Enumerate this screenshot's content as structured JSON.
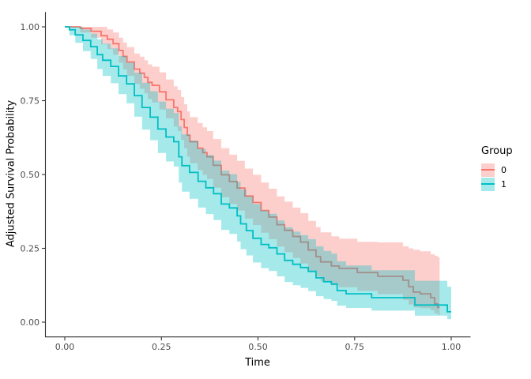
{
  "figure": {
    "background": "#ffffff",
    "axis_color": "#333333",
    "tick_label_color": "#4d4d4d",
    "axis_title_color": "#000000",
    "band_opacity": 0.35,
    "line_width": 1.8
  },
  "chart_data": {
    "type": "line",
    "subtype": "step-survival-curves-with-confidence-bands",
    "title": "",
    "xlabel": "Time",
    "ylabel": "Adjusted Survival Probability",
    "xlim": [
      0,
      1
    ],
    "ylim": [
      0,
      1
    ],
    "grid": false,
    "xticks": [
      0,
      0.25,
      0.5,
      0.75,
      1.0
    ],
    "xtick_labels": [
      "0.00",
      "0.25",
      "0.50",
      "0.75",
      "1.00"
    ],
    "yticks": [
      0,
      0.25,
      0.5,
      0.75,
      1.0
    ],
    "ytick_labels": [
      "0.00",
      "0.25",
      "0.50",
      "0.75",
      "1.00"
    ],
    "legend": {
      "title": "Group",
      "position": "right",
      "entries": [
        {
          "label": "0",
          "color": "#F8766D"
        },
        {
          "label": "1",
          "color": "#00BFC4"
        }
      ]
    },
    "series": [
      {
        "name": "0",
        "color": "#F8766D",
        "t_end": 0.97,
        "points_format": [
          "time",
          "survival",
          "ci_lower",
          "ci_upper"
        ],
        "points": [
          [
            0.0,
            1.0,
            1.0,
            1.0
          ],
          [
            0.04,
            0.995,
            0.981,
            1.0
          ],
          [
            0.068,
            0.985,
            0.963,
            1.0
          ],
          [
            0.094,
            0.97,
            0.941,
            1.0
          ],
          [
            0.11,
            0.958,
            0.925,
            0.991
          ],
          [
            0.125,
            0.943,
            0.906,
            0.981
          ],
          [
            0.14,
            0.92,
            0.879,
            0.963
          ],
          [
            0.151,
            0.9,
            0.856,
            0.947
          ],
          [
            0.161,
            0.881,
            0.834,
            0.931
          ],
          [
            0.18,
            0.857,
            0.807,
            0.91
          ],
          [
            0.194,
            0.843,
            0.791,
            0.899
          ],
          [
            0.206,
            0.829,
            0.775,
            0.887
          ],
          [
            0.215,
            0.812,
            0.756,
            0.873
          ],
          [
            0.226,
            0.802,
            0.744,
            0.865
          ],
          [
            0.245,
            0.78,
            0.72,
            0.846
          ],
          [
            0.262,
            0.753,
            0.69,
            0.822
          ],
          [
            0.282,
            0.727,
            0.662,
            0.799
          ],
          [
            0.292,
            0.713,
            0.647,
            0.786
          ],
          [
            0.301,
            0.686,
            0.617,
            0.762
          ],
          [
            0.309,
            0.659,
            0.589,
            0.738
          ],
          [
            0.317,
            0.633,
            0.561,
            0.714
          ],
          [
            0.324,
            0.611,
            0.538,
            0.694
          ],
          [
            0.344,
            0.589,
            0.515,
            0.674
          ],
          [
            0.357,
            0.574,
            0.499,
            0.66
          ],
          [
            0.368,
            0.56,
            0.485,
            0.647
          ],
          [
            0.384,
            0.531,
            0.455,
            0.62
          ],
          [
            0.405,
            0.499,
            0.423,
            0.589
          ],
          [
            0.426,
            0.476,
            0.4,
            0.567
          ],
          [
            0.446,
            0.454,
            0.378,
            0.546
          ],
          [
            0.466,
            0.427,
            0.351,
            0.52
          ],
          [
            0.487,
            0.405,
            0.329,
            0.499
          ],
          [
            0.508,
            0.378,
            0.303,
            0.473
          ],
          [
            0.528,
            0.356,
            0.281,
            0.452
          ],
          [
            0.549,
            0.33,
            0.256,
            0.426
          ],
          [
            0.569,
            0.311,
            0.237,
            0.408
          ],
          [
            0.59,
            0.29,
            0.217,
            0.388
          ],
          [
            0.61,
            0.271,
            0.199,
            0.369
          ],
          [
            0.63,
            0.244,
            0.174,
            0.343
          ],
          [
            0.65,
            0.222,
            0.154,
            0.322
          ],
          [
            0.662,
            0.204,
            0.138,
            0.304
          ],
          [
            0.69,
            0.19,
            0.125,
            0.291
          ],
          [
            0.71,
            0.182,
            0.118,
            0.283
          ],
          [
            0.757,
            0.168,
            0.106,
            0.272
          ],
          [
            0.81,
            0.155,
            0.095,
            0.27
          ],
          [
            0.875,
            0.142,
            0.075,
            0.257
          ],
          [
            0.89,
            0.12,
            0.06,
            0.25
          ],
          [
            0.902,
            0.102,
            0.05,
            0.245
          ],
          [
            0.92,
            0.096,
            0.047,
            0.24
          ],
          [
            0.947,
            0.083,
            0.04,
            0.23
          ],
          [
            0.957,
            0.062,
            0.03,
            0.225
          ],
          [
            0.965,
            0.05,
            0.025,
            0.22
          ]
        ]
      },
      {
        "name": "1",
        "color": "#00BFC4",
        "t_end": 1.0,
        "points_format": [
          "time",
          "survival",
          "ci_lower",
          "ci_upper"
        ],
        "points": [
          [
            0.0,
            1.0,
            1.0,
            1.0
          ],
          [
            0.012,
            0.99,
            0.971,
            1.0
          ],
          [
            0.027,
            0.973,
            0.946,
            1.0
          ],
          [
            0.047,
            0.954,
            0.918,
            0.991
          ],
          [
            0.067,
            0.933,
            0.891,
            0.977
          ],
          [
            0.084,
            0.906,
            0.857,
            0.958
          ],
          [
            0.098,
            0.887,
            0.834,
            0.943
          ],
          [
            0.119,
            0.866,
            0.809,
            0.927
          ],
          [
            0.139,
            0.834,
            0.772,
            0.901
          ],
          [
            0.16,
            0.807,
            0.741,
            0.879
          ],
          [
            0.18,
            0.767,
            0.696,
            0.845
          ],
          [
            0.2,
            0.727,
            0.652,
            0.811
          ],
          [
            0.221,
            0.694,
            0.616,
            0.782
          ],
          [
            0.241,
            0.654,
            0.573,
            0.747
          ],
          [
            0.262,
            0.627,
            0.544,
            0.723
          ],
          [
            0.282,
            0.611,
            0.527,
            0.708
          ],
          [
            0.295,
            0.56,
            0.473,
            0.663
          ],
          [
            0.303,
            0.53,
            0.442,
            0.636
          ],
          [
            0.323,
            0.507,
            0.418,
            0.615
          ],
          [
            0.345,
            0.477,
            0.388,
            0.587
          ],
          [
            0.365,
            0.455,
            0.366,
            0.566
          ],
          [
            0.385,
            0.435,
            0.346,
            0.547
          ],
          [
            0.405,
            0.4,
            0.312,
            0.513
          ],
          [
            0.426,
            0.387,
            0.299,
            0.501
          ],
          [
            0.446,
            0.36,
            0.273,
            0.475
          ],
          [
            0.455,
            0.333,
            0.247,
            0.449
          ],
          [
            0.47,
            0.31,
            0.226,
            0.426
          ],
          [
            0.487,
            0.284,
            0.202,
            0.4
          ],
          [
            0.508,
            0.263,
            0.183,
            0.378
          ],
          [
            0.528,
            0.252,
            0.173,
            0.367
          ],
          [
            0.549,
            0.231,
            0.155,
            0.344
          ],
          [
            0.569,
            0.209,
            0.136,
            0.321
          ],
          [
            0.59,
            0.196,
            0.125,
            0.307
          ],
          [
            0.61,
            0.185,
            0.116,
            0.295
          ],
          [
            0.63,
            0.172,
            0.105,
            0.281
          ],
          [
            0.65,
            0.15,
            0.088,
            0.257
          ],
          [
            0.67,
            0.137,
            0.078,
            0.241
          ],
          [
            0.69,
            0.129,
            0.072,
            0.232
          ],
          [
            0.705,
            0.107,
            0.056,
            0.206
          ],
          [
            0.728,
            0.096,
            0.048,
            0.192
          ],
          [
            0.794,
            0.083,
            0.039,
            0.176
          ],
          [
            0.906,
            0.058,
            0.022,
            0.14
          ],
          [
            0.99,
            0.035,
            0.01,
            0.12
          ]
        ]
      }
    ]
  }
}
